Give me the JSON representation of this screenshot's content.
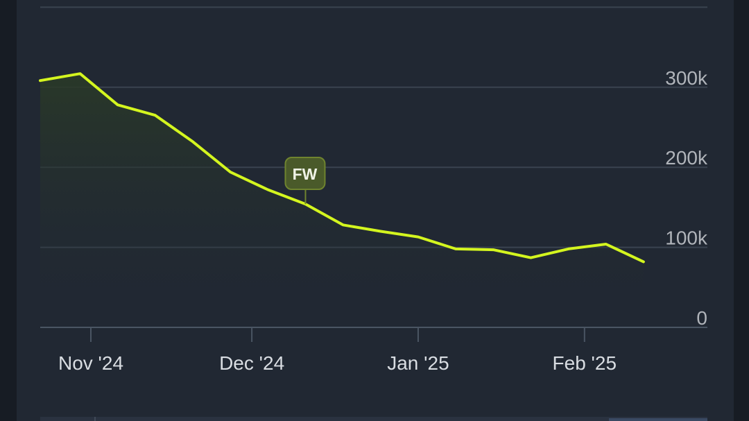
{
  "chart_data": {
    "type": "area",
    "title": "",
    "xlabel": "",
    "ylabel": "",
    "x": [
      "2024-10-24",
      "2024-10-30",
      "2024-11-06",
      "2024-11-13",
      "2024-11-20",
      "2024-11-27",
      "2024-12-04",
      "2024-12-11",
      "2024-12-18",
      "2024-12-25",
      "2025-01-01",
      "2025-01-08",
      "2025-01-15",
      "2025-01-22",
      "2025-01-29",
      "2025-02-05",
      "2025-02-12"
    ],
    "series": [
      {
        "values": [
          310000,
          317000,
          278000,
          265000,
          232000,
          194000,
          172000,
          154000,
          128000,
          120000,
          113000,
          98000,
          97000,
          87000,
          98000,
          104000,
          82000
        ]
      }
    ],
    "ylim": [
      0,
      400000
    ],
    "yticks": [
      0,
      100000,
      200000,
      300000
    ],
    "ytick_labels": [
      "0",
      "100k",
      "200k",
      "300k"
    ],
    "xticks": [
      {
        "label": "Nov '24",
        "date": "2024-11-01"
      },
      {
        "label": "Dec '24",
        "date": "2024-12-01"
      },
      {
        "label": "Jan '25",
        "date": "2025-01-01"
      },
      {
        "label": "Feb '25",
        "date": "2025-02-01"
      }
    ],
    "annotations": [
      {
        "label": "FW",
        "date": "2024-12-11"
      }
    ],
    "grid": true,
    "colors": {
      "line": "#d4f51f",
      "area": "#2a3a27",
      "grid": "#3a4350",
      "axis": "#4a5563",
      "tick_text": "#b0b4ba",
      "x_label_text": "#d9dde2",
      "annotation_bg": "#4a5a2a",
      "annotation_border": "#6f842f",
      "annotation_text": "#f0f3e6"
    }
  }
}
